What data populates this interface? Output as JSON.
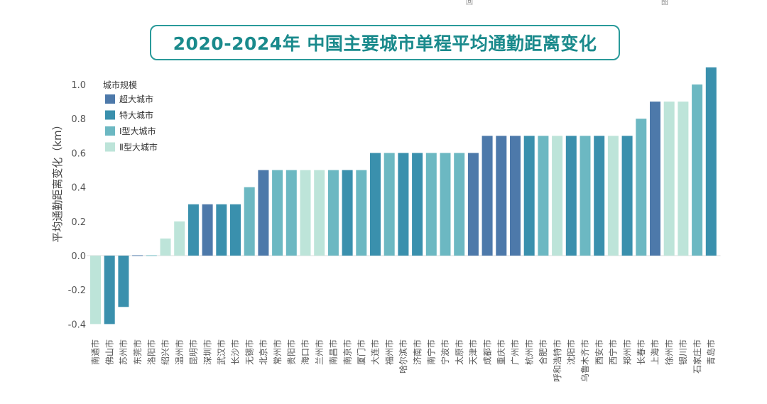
{
  "chart_data": {
    "type": "bar",
    "title": "2020-2024年 中国主要城市单程平均通勤距离变化",
    "ylabel": "平均通勤距离变化（km）",
    "xlabel": "",
    "ylim": [
      -0.4,
      1.1
    ],
    "yticks": [
      1.0,
      0.8,
      0.6,
      0.4,
      0.2,
      0.0,
      -0.2,
      -0.4
    ],
    "ytick_labels": [
      "1.0",
      "0.8",
      "0.6",
      "0.4",
      "0.2",
      "0.0",
      "-0.2",
      "-0.4"
    ],
    "legend": {
      "title": "城市规模",
      "placement": "top-left",
      "entries": [
        {
          "label": "超大城市",
          "color": "#4d79aa"
        },
        {
          "label": "特大城市",
          "color": "#3a90ad"
        },
        {
          "label": "Ⅰ型大城市",
          "color": "#6cb8c2"
        },
        {
          "label": "Ⅱ型大城市",
          "color": "#bde4d9"
        }
      ]
    },
    "categories": [
      "南通市",
      "佛山市",
      "苏州市",
      "东莞市",
      "洛阳市",
      "绍兴市",
      "温州市",
      "昆明市",
      "深圳市",
      "武汉市",
      "长沙市",
      "无锡市",
      "北京市",
      "常州市",
      "贵阳市",
      "海口市",
      "兰州市",
      "南昌市",
      "南京市",
      "厦门市",
      "大连市",
      "福州市",
      "哈尔滨市",
      "济南市",
      "南宁市",
      "宁波市",
      "太原市",
      "天津市",
      "成都市",
      "重庆市",
      "广州市",
      "杭州市",
      "合肥市",
      "呼和浩特市",
      "沈阳市",
      "乌鲁木齐市",
      "西安市",
      "西宁市",
      "郑州市",
      "长春市",
      "上海市",
      "徐州市",
      "银川市",
      "石家庄市",
      "青岛市"
    ],
    "values": [
      -0.4,
      -0.4,
      -0.3,
      0.0,
      0.0,
      0.1,
      0.2,
      0.3,
      0.3,
      0.3,
      0.3,
      0.4,
      0.5,
      0.5,
      0.5,
      0.5,
      0.5,
      0.5,
      0.5,
      0.5,
      0.6,
      0.6,
      0.6,
      0.6,
      0.6,
      0.6,
      0.6,
      0.6,
      0.7,
      0.7,
      0.7,
      0.7,
      0.7,
      0.7,
      0.7,
      0.7,
      0.7,
      0.7,
      0.7,
      0.8,
      0.9,
      0.9,
      0.9,
      1.0,
      1.1
    ],
    "size_class": [
      3,
      1,
      1,
      0,
      2,
      3,
      3,
      1,
      0,
      1,
      1,
      2,
      0,
      2,
      2,
      3,
      3,
      2,
      1,
      2,
      1,
      2,
      1,
      1,
      2,
      2,
      2,
      0,
      0,
      0,
      0,
      1,
      2,
      3,
      1,
      2,
      1,
      3,
      1,
      2,
      0,
      3,
      3,
      2,
      1
    ]
  },
  "top_fragments": [
    "回",
    "图"
  ]
}
